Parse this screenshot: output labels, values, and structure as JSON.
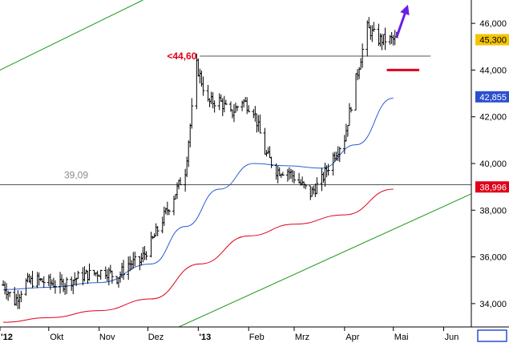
{
  "chart_data": {
    "type": "candlestick",
    "title": "",
    "xlabel": "",
    "ylabel": "",
    "ylim": [
      33000,
      47000
    ],
    "y_ticks": [
      "34,000",
      "36,000",
      "38,000",
      "40,000",
      "42,000",
      "44,000",
      "46,000"
    ],
    "y_tick_values": [
      34000,
      36000,
      38000,
      40000,
      42000,
      44000,
      46000
    ],
    "x_ticks": [
      "'12",
      "Okt",
      "Nov",
      "Dez",
      "'13",
      "Feb",
      "Mrz",
      "Apr",
      "Mai",
      "Jun"
    ],
    "x_tick_dates": [
      "2012-09-01",
      "2012-10-01",
      "2012-11-01",
      "2012-12-01",
      "2013-01-01",
      "2013-02-01",
      "2013-03-01",
      "2013-04-01",
      "2013-05-01",
      "2013-06-01"
    ],
    "x_range": [
      "2012-09-01",
      "2013-06-18"
    ],
    "grid": false,
    "price_series": {
      "dates": [
        "2012-09-03",
        "2012-09-10",
        "2012-09-17",
        "2012-09-24",
        "2012-10-01",
        "2012-10-08",
        "2012-10-15",
        "2012-10-22",
        "2012-10-29",
        "2012-11-05",
        "2012-11-12",
        "2012-11-19",
        "2012-11-26",
        "2012-12-03",
        "2012-12-10",
        "2012-12-17",
        "2012-12-24",
        "2012-12-31",
        "2013-01-07",
        "2013-01-14",
        "2013-01-21",
        "2013-01-28",
        "2013-02-04",
        "2013-02-11",
        "2013-02-18",
        "2013-02-25",
        "2013-03-04",
        "2013-03-11",
        "2013-03-18",
        "2013-03-25",
        "2013-04-01",
        "2013-04-08",
        "2013-04-15",
        "2013-04-22",
        "2013-04-29"
      ],
      "close": [
        34800,
        34100,
        34900,
        35000,
        34900,
        34800,
        35000,
        35200,
        35300,
        35400,
        35100,
        35700,
        35800,
        36600,
        37600,
        38600,
        39700,
        44200,
        42600,
        42700,
        42100,
        42700,
        42300,
        40500,
        39700,
        39700,
        39200,
        38700,
        39300,
        40300,
        41100,
        43600,
        45800,
        45300,
        45300
      ]
    },
    "moving_average_blue": {
      "dates": [
        "2012-09-03",
        "2012-10-01",
        "2012-11-01",
        "2012-12-03",
        "2012-12-24",
        "2013-01-14",
        "2013-02-04",
        "2013-02-25",
        "2013-03-18",
        "2013-04-08",
        "2013-05-01"
      ],
      "values": [
        34600,
        34700,
        34900,
        35700,
        37300,
        38900,
        40000,
        39900,
        39800,
        40800,
        42800
      ]
    },
    "moving_average_red": {
      "dates": [
        "2012-09-03",
        "2012-10-01",
        "2012-11-01",
        "2012-12-03",
        "2013-01-02",
        "2013-02-01",
        "2013-03-01",
        "2013-04-01",
        "2013-05-01"
      ],
      "values": [
        33200,
        33400,
        33700,
        34200,
        35700,
        36900,
        37400,
        37800,
        38900
      ]
    },
    "trendline_upper": {
      "dates": [
        "2012-09-01",
        "2012-11-28"
      ],
      "values": [
        44000,
        47000
      ]
    },
    "trendline_lower": {
      "dates": [
        "2012-12-20",
        "2013-06-18"
      ],
      "values": [
        33000,
        38700
      ]
    },
    "resistance_line": {
      "value": 44600,
      "dates": [
        "2013-01-02",
        "2013-05-24"
      ],
      "label": "<44,60"
    },
    "support_line": {
      "value": 39090,
      "dates": [
        "2012-09-01",
        "2013-06-18"
      ],
      "label": "39,09"
    },
    "red_marker": {
      "value": 44000,
      "dates": [
        "2013-04-27",
        "2013-05-17"
      ]
    },
    "arrow": {
      "from": {
        "date": "2013-05-03",
        "value": 45400
      },
      "to": {
        "date": "2013-05-10",
        "value": 46800
      }
    },
    "last_value_labels": [
      {
        "text": "45,300",
        "background": "#f5c400",
        "color": "#000000"
      },
      {
        "text": "42,855",
        "background": "#2b4fcf",
        "color": "#ffffff"
      },
      {
        "text": "38,996",
        "background": "#e0001a",
        "color": "#ffffff"
      }
    ],
    "colors": {
      "price": "#000000",
      "ma_blue": "#2b5fd6",
      "ma_red": "#e0001a",
      "trend": "#1a9a1a",
      "arrow": "#6a1fe6",
      "resistance_label": "#e0001a",
      "support_label": "#8a8a8a",
      "axis": "#000000",
      "hline": "#555555"
    }
  }
}
